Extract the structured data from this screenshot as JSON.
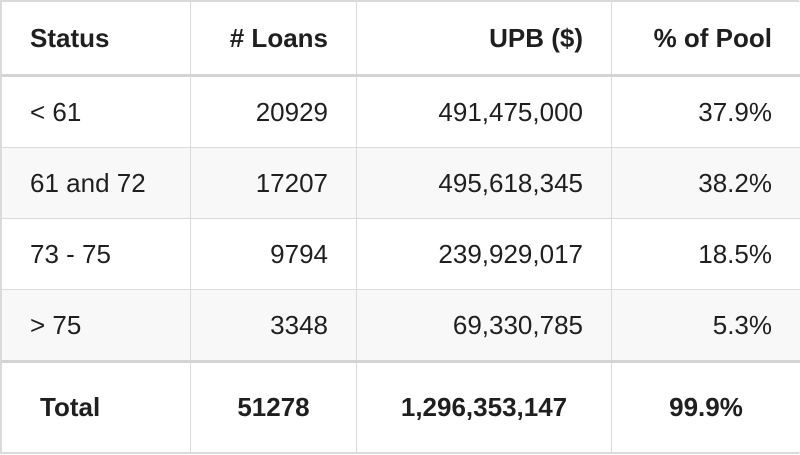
{
  "table": {
    "headers": [
      "Status",
      "# Loans",
      "UPB ($)",
      "% of Pool"
    ],
    "rows": [
      [
        "< 61",
        "20929",
        "491,475,000",
        "37.9%"
      ],
      [
        "61 and 72",
        "17207",
        "495,618,345",
        "38.2%"
      ],
      [
        "73 - 75",
        "9794",
        "239,929,017",
        "18.5%"
      ],
      [
        "> 75",
        "3348",
        "69,330,785",
        "5.3%"
      ]
    ],
    "total": [
      "Total",
      "51278",
      "1,296,353,147",
      "99.9%"
    ]
  }
}
